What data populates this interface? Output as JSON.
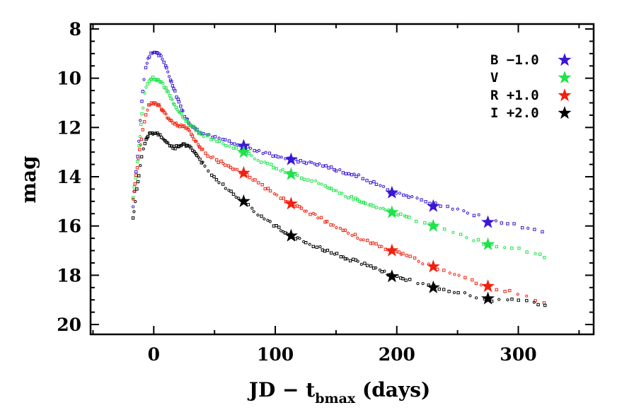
{
  "chart_data": {
    "type": "scatter",
    "xlabel": "JD − t",
    "xlabel_sub": "bmax",
    "xlabel_suffix": " (days)",
    "ylabel": "mag",
    "xlim": [
      -52,
      362
    ],
    "ylim": [
      20.4,
      7.8
    ],
    "y_inverted": true,
    "x_ticks": [
      0,
      100,
      200,
      300
    ],
    "x_tick_labels": [
      "0",
      "100",
      "200",
      "300"
    ],
    "y_ticks": [
      8,
      10,
      12,
      14,
      16,
      18,
      20
    ],
    "y_tick_labels": [
      "8",
      "10",
      "12",
      "14",
      "16",
      "18",
      "20"
    ],
    "legend_position": "top-right",
    "series": [
      {
        "name": "B −1.0",
        "color": "#3a16d6",
        "curve": [
          [
            -17,
            15.2
          ],
          [
            -13,
            13.0
          ],
          [
            -10,
            11.0
          ],
          [
            -7,
            9.6
          ],
          [
            -4,
            9.1
          ],
          [
            0,
            8.9
          ],
          [
            5,
            9.05
          ],
          [
            10,
            9.5
          ],
          [
            15,
            10.2
          ],
          [
            20,
            10.9
          ],
          [
            25,
            11.5
          ],
          [
            30,
            11.9
          ],
          [
            35,
            12.1
          ],
          [
            40,
            12.25
          ],
          [
            50,
            12.4
          ],
          [
            60,
            12.55
          ],
          [
            74,
            12.75
          ],
          [
            90,
            13.0
          ],
          [
            113,
            13.3
          ],
          [
            130,
            13.45
          ],
          [
            150,
            13.7
          ],
          [
            170,
            14.0
          ],
          [
            186,
            14.35
          ],
          [
            196,
            14.65
          ],
          [
            205,
            14.75
          ],
          [
            230,
            15.1
          ],
          [
            260,
            15.45
          ],
          [
            275,
            15.75
          ],
          [
            300,
            16.0
          ],
          [
            325,
            16.3
          ]
        ],
        "stars": [
          [
            74,
            12.75
          ],
          [
            113,
            13.3
          ],
          [
            196,
            14.65
          ],
          [
            230,
            15.2
          ],
          [
            275,
            15.85
          ]
        ]
      },
      {
        "name": "V",
        "color": "#1ee34a",
        "curve": [
          [
            -17,
            14.8
          ],
          [
            -13,
            13.3
          ],
          [
            -10,
            11.6
          ],
          [
            -7,
            10.5
          ],
          [
            -4,
            10.1
          ],
          [
            0,
            10.0
          ],
          [
            5,
            10.1
          ],
          [
            10,
            10.4
          ],
          [
            15,
            10.9
          ],
          [
            20,
            11.3
          ],
          [
            25,
            11.6
          ],
          [
            30,
            11.9
          ],
          [
            35,
            12.1
          ],
          [
            40,
            12.3
          ],
          [
            55,
            12.6
          ],
          [
            74,
            13.0
          ],
          [
            90,
            13.4
          ],
          [
            113,
            13.9
          ],
          [
            130,
            14.15
          ],
          [
            150,
            14.6
          ],
          [
            170,
            15.0
          ],
          [
            196,
            15.45
          ],
          [
            230,
            16.0
          ],
          [
            260,
            16.5
          ],
          [
            275,
            16.75
          ],
          [
            300,
            16.95
          ],
          [
            325,
            17.3
          ]
        ],
        "stars": [
          [
            74,
            13.0
          ],
          [
            113,
            13.9
          ],
          [
            196,
            15.45
          ],
          [
            230,
            16.0
          ],
          [
            275,
            16.75
          ]
        ]
      },
      {
        "name": "R +1.0",
        "color": "#f2200e",
        "curve": [
          [
            -17,
            14.9
          ],
          [
            -13,
            13.4
          ],
          [
            -10,
            12.4
          ],
          [
            -7,
            11.5
          ],
          [
            -4,
            11.1
          ],
          [
            0,
            11.0
          ],
          [
            5,
            11.1
          ],
          [
            10,
            11.5
          ],
          [
            15,
            11.8
          ],
          [
            20,
            11.9
          ],
          [
            25,
            11.95
          ],
          [
            30,
            12.2
          ],
          [
            35,
            12.6
          ],
          [
            45,
            13.15
          ],
          [
            60,
            13.55
          ],
          [
            74,
            13.85
          ],
          [
            90,
            14.4
          ],
          [
            113,
            15.1
          ],
          [
            130,
            15.5
          ],
          [
            150,
            16.05
          ],
          [
            170,
            16.5
          ],
          [
            196,
            17.0
          ],
          [
            230,
            17.65
          ],
          [
            260,
            18.2
          ],
          [
            275,
            18.45
          ],
          [
            300,
            18.75
          ],
          [
            325,
            19.15
          ]
        ],
        "stars": [
          [
            74,
            13.85
          ],
          [
            113,
            15.1
          ],
          [
            196,
            17.0
          ],
          [
            230,
            17.65
          ],
          [
            275,
            18.45
          ]
        ]
      },
      {
        "name": "I +2.0",
        "color": "#000000",
        "curve": [
          [
            -17,
            15.7
          ],
          [
            -13,
            14.2
          ],
          [
            -10,
            13.2
          ],
          [
            -7,
            12.6
          ],
          [
            -4,
            12.3
          ],
          [
            0,
            12.2
          ],
          [
            5,
            12.3
          ],
          [
            10,
            12.55
          ],
          [
            15,
            12.8
          ],
          [
            20,
            12.8
          ],
          [
            25,
            12.7
          ],
          [
            30,
            12.75
          ],
          [
            35,
            13.1
          ],
          [
            45,
            13.8
          ],
          [
            60,
            14.5
          ],
          [
            74,
            15.0
          ],
          [
            90,
            15.7
          ],
          [
            113,
            16.4
          ],
          [
            130,
            16.75
          ],
          [
            150,
            17.15
          ],
          [
            170,
            17.5
          ],
          [
            196,
            18.0
          ],
          [
            230,
            18.45
          ],
          [
            260,
            18.8
          ],
          [
            275,
            19.0
          ],
          [
            300,
            19.0
          ],
          [
            325,
            19.3
          ]
        ],
        "stars": [
          [
            74,
            15.0
          ],
          [
            113,
            16.4
          ],
          [
            196,
            18.05
          ],
          [
            230,
            18.5
          ],
          [
            275,
            18.95
          ]
        ]
      }
    ]
  }
}
